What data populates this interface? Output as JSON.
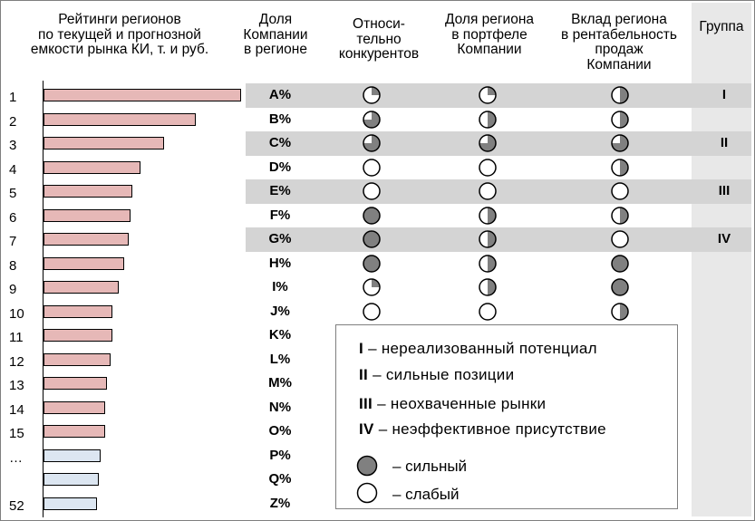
{
  "headers": {
    "ratings": [
      "Рейтинги регионов",
      "по текущей  и прогнозной",
      "емкости рынка КИ, т. и руб."
    ],
    "share": [
      "Доля",
      "Компании",
      "в регионе"
    ],
    "competitors": [
      "Относи-",
      "тельно",
      "конкурентов"
    ],
    "portfolio": [
      "Доля региона",
      "в портфеле",
      "Компании"
    ],
    "profitability": [
      "Вклад региона",
      "в рентабельность",
      "продаж",
      "Компании"
    ],
    "group": "Группа"
  },
  "rows": [
    {
      "rank": "1",
      "bar": 1.0,
      "bar_type": "current",
      "share": "A%",
      "competitors": 0.25,
      "portfolio": 0.25,
      "profitability": 0.5,
      "group": "I",
      "band": true
    },
    {
      "rank": "2",
      "bar": 0.77,
      "bar_type": "current",
      "share": "B%",
      "competitors": 0.75,
      "portfolio": 0.5,
      "profitability": 0.5,
      "group": "",
      "band": false
    },
    {
      "rank": "3",
      "bar": 0.61,
      "bar_type": "current",
      "share": "C%",
      "competitors": 0.75,
      "portfolio": 0.75,
      "profitability": 0.75,
      "group": "II",
      "band": true
    },
    {
      "rank": "4",
      "bar": 0.49,
      "bar_type": "current",
      "share": "D%",
      "competitors": 0,
      "portfolio": 0,
      "profitability": 0.5,
      "group": "",
      "band": false
    },
    {
      "rank": "5",
      "bar": 0.45,
      "bar_type": "current",
      "share": "E%",
      "competitors": 0,
      "portfolio": 0,
      "profitability": 0,
      "group": "III",
      "band": true
    },
    {
      "rank": "6",
      "bar": 0.44,
      "bar_type": "current",
      "share": "F%",
      "competitors": 1,
      "portfolio": 0.5,
      "profitability": 0.5,
      "group": "",
      "band": false
    },
    {
      "rank": "7",
      "bar": 0.43,
      "bar_type": "current",
      "share": "G%",
      "competitors": 1,
      "portfolio": 0.5,
      "profitability": 0,
      "group": "IV",
      "band": true
    },
    {
      "rank": "8",
      "bar": 0.41,
      "bar_type": "current",
      "share": "H%",
      "competitors": 1,
      "portfolio": 0.5,
      "profitability": 1,
      "group": "",
      "band": false
    },
    {
      "rank": "9",
      "bar": 0.38,
      "bar_type": "current",
      "share": "I%",
      "competitors": 0.25,
      "portfolio": 0.5,
      "profitability": 1,
      "group": "",
      "band": false
    },
    {
      "rank": "10",
      "bar": 0.35,
      "bar_type": "current",
      "share": "J%",
      "competitors": 0,
      "portfolio": 0,
      "profitability": 0.5,
      "group": "",
      "band": false
    },
    {
      "rank": "11",
      "bar": 0.35,
      "bar_type": "current",
      "share": "K%",
      "competitors": null,
      "portfolio": null,
      "profitability": null,
      "group": "",
      "band": false
    },
    {
      "rank": "12",
      "bar": 0.34,
      "bar_type": "current",
      "share": "L%",
      "competitors": null,
      "portfolio": null,
      "profitability": null,
      "group": "",
      "band": false
    },
    {
      "rank": "13",
      "bar": 0.32,
      "bar_type": "current",
      "share": "M%",
      "competitors": null,
      "portfolio": null,
      "profitability": null,
      "group": "",
      "band": false
    },
    {
      "rank": "14",
      "bar": 0.31,
      "bar_type": "current",
      "share": "N%",
      "competitors": null,
      "portfolio": null,
      "profitability": null,
      "group": "",
      "band": false
    },
    {
      "rank": "15",
      "bar": 0.31,
      "bar_type": "current",
      "share": "O%",
      "competitors": null,
      "portfolio": null,
      "profitability": null,
      "group": "",
      "band": false
    },
    {
      "rank": "…",
      "bar": 0.29,
      "bar_type": "forecast",
      "share": "P%",
      "competitors": null,
      "portfolio": null,
      "profitability": null,
      "group": "",
      "band": false
    },
    {
      "rank": "",
      "bar": 0.28,
      "bar_type": "forecast",
      "share": "Q%",
      "competitors": null,
      "portfolio": null,
      "profitability": null,
      "group": "",
      "band": false
    },
    {
      "rank": "52",
      "bar": 0.27,
      "bar_type": "forecast",
      "share": "Z%",
      "competitors": null,
      "portfolio": null,
      "profitability": null,
      "group": "",
      "band": false
    }
  ],
  "legend": {
    "items": [
      {
        "num": "I",
        "text": "– нереализованный  потенциал"
      },
      {
        "num": "II",
        "text": "– сильные  позиции"
      },
      {
        "num": "III",
        "text": "– неохваченные  рынки"
      },
      {
        "num": "IV",
        "text": "– неэффективное  присутствие"
      }
    ],
    "strong": "–  сильный",
    "weak": "–  слабый"
  },
  "colors": {
    "bar_current": "#e6b8b7",
    "bar_forecast": "#dce6f1",
    "dot_fill": "#808080",
    "band": "#d4d4d4",
    "group_column": "#e8e8e8"
  }
}
